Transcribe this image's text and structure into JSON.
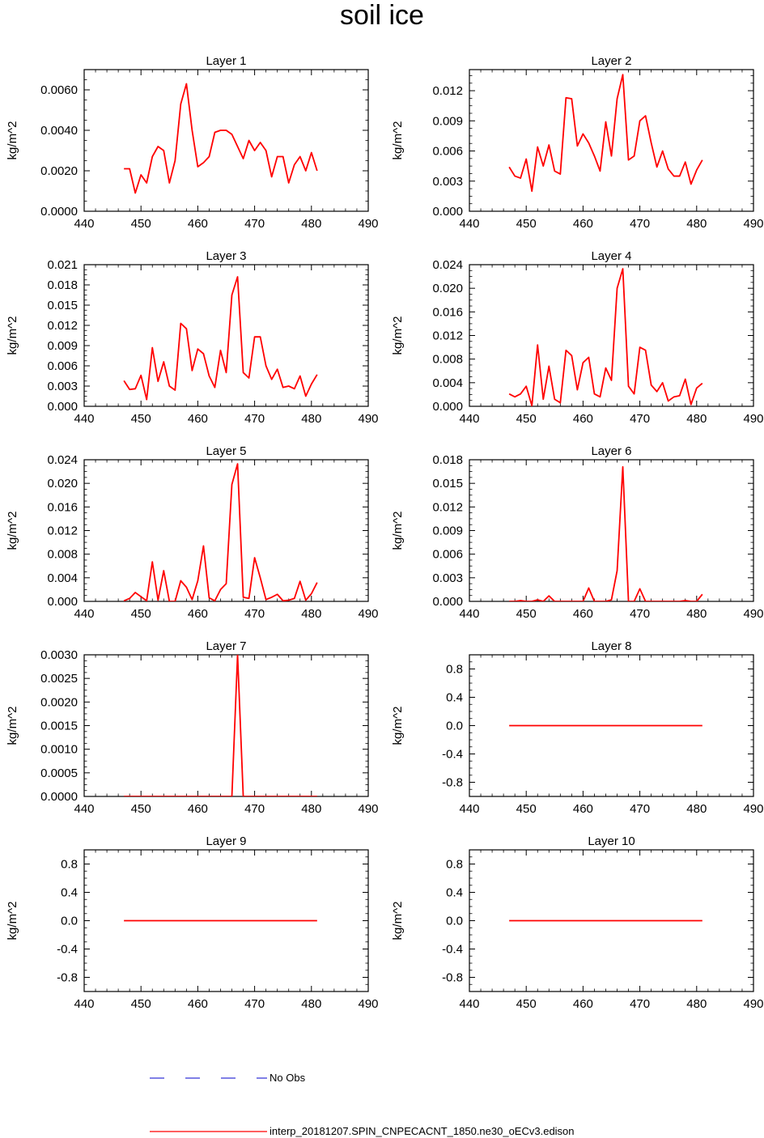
{
  "chart_data": {
    "title": "soil ice",
    "type": "line",
    "legend": [
      {
        "label": "No Obs",
        "color": "#0000cc",
        "style": "dashed"
      },
      {
        "label": "interp_20181207.SPIN_CNPECACNT_1850.ne30_oECv3.edison",
        "color": "#ff0000",
        "style": "solid"
      }
    ],
    "x_ticks": [
      440,
      450,
      460,
      470,
      480,
      490
    ],
    "x": [
      447,
      448,
      449,
      450,
      451,
      452,
      453,
      454,
      455,
      456,
      457,
      458,
      459,
      460,
      461,
      462,
      463,
      464,
      465,
      466,
      467,
      468,
      469,
      470,
      471,
      472,
      473,
      474,
      475,
      476,
      477,
      478,
      479,
      480,
      481
    ],
    "panels": [
      {
        "title": "Layer 1",
        "ylabel": "kg/m^2",
        "xlim": [
          440,
          490
        ],
        "ylim": [
          0,
          0.007
        ],
        "y_ticks": [
          "0.0000",
          "0.0020",
          "0.0040",
          "0.0060"
        ],
        "values": [
          0.0021,
          0.0021,
          0.0009,
          0.0018,
          0.0014,
          0.0027,
          0.0032,
          0.003,
          0.0014,
          0.0025,
          0.0053,
          0.0063,
          0.004,
          0.0022,
          0.0024,
          0.0027,
          0.0039,
          0.004,
          0.004,
          0.0038,
          0.0032,
          0.0026,
          0.0035,
          0.003,
          0.0034,
          0.003,
          0.0017,
          0.0027,
          0.0027,
          0.0014,
          0.0023,
          0.0027,
          0.002,
          0.0029,
          0.002
        ]
      },
      {
        "title": "Layer 2",
        "ylabel": "kg/m^2",
        "xlim": [
          440,
          490
        ],
        "ylim": [
          0,
          0.0141
        ],
        "y_ticks": [
          "0.000",
          "0.003",
          "0.006",
          "0.009",
          "0.012"
        ],
        "values": [
          0.0044,
          0.0035,
          0.0033,
          0.0052,
          0.002,
          0.0064,
          0.0045,
          0.0066,
          0.004,
          0.0037,
          0.0113,
          0.0112,
          0.0065,
          0.0077,
          0.0068,
          0.0055,
          0.004,
          0.0089,
          0.0055,
          0.0112,
          0.0136,
          0.0051,
          0.0055,
          0.009,
          0.0095,
          0.0068,
          0.0044,
          0.006,
          0.0042,
          0.0035,
          0.0035,
          0.0049,
          0.0027,
          0.0041,
          0.0051
        ]
      },
      {
        "title": "Layer 3",
        "ylabel": "kg/m^2",
        "xlim": [
          440,
          490
        ],
        "ylim": [
          0,
          0.021
        ],
        "y_ticks": [
          "0.000",
          "0.003",
          "0.006",
          "0.009",
          "0.012",
          "0.015",
          "0.018",
          "0.021"
        ],
        "values": [
          0.0038,
          0.0025,
          0.0026,
          0.0046,
          0.001,
          0.0087,
          0.0037,
          0.0066,
          0.003,
          0.0024,
          0.0123,
          0.0115,
          0.0053,
          0.0085,
          0.0078,
          0.0045,
          0.0028,
          0.0083,
          0.005,
          0.0165,
          0.0192,
          0.005,
          0.0042,
          0.0103,
          0.0103,
          0.006,
          0.004,
          0.0055,
          0.0028,
          0.003,
          0.0026,
          0.0045,
          0.0015,
          0.0033,
          0.0047
        ]
      },
      {
        "title": "Layer 4",
        "ylabel": "kg/m^2",
        "xlim": [
          440,
          490
        ],
        "ylim": [
          0,
          0.024
        ],
        "y_ticks": [
          "0.000",
          "0.004",
          "0.008",
          "0.012",
          "0.016",
          "0.020",
          "0.024"
        ],
        "values": [
          0.0021,
          0.0016,
          0.0021,
          0.0034,
          0.0001,
          0.0104,
          0.0012,
          0.0068,
          0.0012,
          0.0006,
          0.0095,
          0.0086,
          0.0028,
          0.0074,
          0.0083,
          0.0021,
          0.0016,
          0.0065,
          0.0044,
          0.02,
          0.0233,
          0.0034,
          0.0021,
          0.01,
          0.0095,
          0.0036,
          0.0025,
          0.004,
          0.0009,
          0.0016,
          0.0018,
          0.0046,
          0.0003,
          0.0031,
          0.0039
        ]
      },
      {
        "title": "Layer 5",
        "ylabel": "kg/m^2",
        "xlim": [
          440,
          490
        ],
        "ylim": [
          0,
          0.024
        ],
        "y_ticks": [
          "0.000",
          "0.004",
          "0.008",
          "0.012",
          "0.016",
          "0.020",
          "0.024"
        ],
        "values": [
          0.0001,
          0.0005,
          0.0015,
          0.0008,
          0.0001,
          0.0067,
          0.0002,
          0.0052,
          0.0,
          0.0,
          0.0035,
          0.0024,
          0.0003,
          0.0035,
          0.0094,
          0.0006,
          0.0001,
          0.002,
          0.003,
          0.0198,
          0.0233,
          0.0007,
          0.0005,
          0.0074,
          0.004,
          0.0003,
          0.0007,
          0.0012,
          0.0001,
          0.0002,
          0.0005,
          0.0034,
          0.0002,
          0.0013,
          0.0032
        ]
      },
      {
        "title": "Layer 6",
        "ylabel": "kg/m^2",
        "xlim": [
          440,
          490
        ],
        "ylim": [
          0,
          0.018
        ],
        "y_ticks": [
          "0.000",
          "0.003",
          "0.006",
          "0.009",
          "0.012",
          "0.015",
          "0.018"
        ],
        "values": [
          0.0,
          0.0,
          0.0001,
          0.0,
          0.0,
          0.0002,
          0.0,
          0.0007,
          0.0,
          0.0,
          0.0,
          0.0,
          0.0,
          0.0,
          0.0017,
          0.0,
          0.0,
          0.0,
          0.0002,
          0.0039,
          0.0171,
          0.0,
          0.0,
          0.0016,
          0.0,
          0.0,
          0.0,
          0.0,
          0.0,
          0.0,
          0.0,
          0.0001,
          0.0,
          0.0,
          0.0009
        ]
      },
      {
        "title": "Layer 7",
        "ylabel": "kg/m^2",
        "xlim": [
          440,
          490
        ],
        "ylim": [
          0,
          0.003
        ],
        "y_ticks": [
          "0.0000",
          "0.0005",
          "0.0010",
          "0.0015",
          "0.0020",
          "0.0025",
          "0.0030"
        ],
        "values": [
          0,
          0,
          0,
          0,
          0,
          0,
          0,
          0,
          0,
          0,
          0,
          0,
          0,
          0,
          0,
          0,
          0,
          0,
          0,
          0,
          0.003,
          0,
          0,
          0,
          0,
          0,
          0,
          0,
          0,
          0,
          0,
          0,
          0,
          0,
          0
        ]
      },
      {
        "title": "Layer 8",
        "ylabel": "kg/m^2",
        "xlim": [
          440,
          490
        ],
        "ylim": [
          -1,
          1
        ],
        "y_ticks": [
          "-0.8",
          "-0.4",
          "0.0",
          "0.4",
          "0.8"
        ],
        "values": [
          0,
          0,
          0,
          0,
          0,
          0,
          0,
          0,
          0,
          0,
          0,
          0,
          0,
          0,
          0,
          0,
          0,
          0,
          0,
          0,
          0,
          0,
          0,
          0,
          0,
          0,
          0,
          0,
          0,
          0,
          0,
          0,
          0,
          0,
          0
        ]
      },
      {
        "title": "Layer 9",
        "ylabel": "kg/m^2",
        "xlim": [
          440,
          490
        ],
        "ylim": [
          -1,
          1
        ],
        "y_ticks": [
          "-0.8",
          "-0.4",
          "0.0",
          "0.4",
          "0.8"
        ],
        "values": [
          0,
          0,
          0,
          0,
          0,
          0,
          0,
          0,
          0,
          0,
          0,
          0,
          0,
          0,
          0,
          0,
          0,
          0,
          0,
          0,
          0,
          0,
          0,
          0,
          0,
          0,
          0,
          0,
          0,
          0,
          0,
          0,
          0,
          0,
          0
        ]
      },
      {
        "title": "Layer 10",
        "ylabel": "kg/m^2",
        "xlim": [
          440,
          490
        ],
        "ylim": [
          -1,
          1
        ],
        "y_ticks": [
          "-0.8",
          "-0.4",
          "0.0",
          "0.4",
          "0.8"
        ],
        "values": [
          0,
          0,
          0,
          0,
          0,
          0,
          0,
          0,
          0,
          0,
          0,
          0,
          0,
          0,
          0,
          0,
          0,
          0,
          0,
          0,
          0,
          0,
          0,
          0,
          0,
          0,
          0,
          0,
          0,
          0,
          0,
          0,
          0,
          0,
          0
        ]
      }
    ]
  }
}
